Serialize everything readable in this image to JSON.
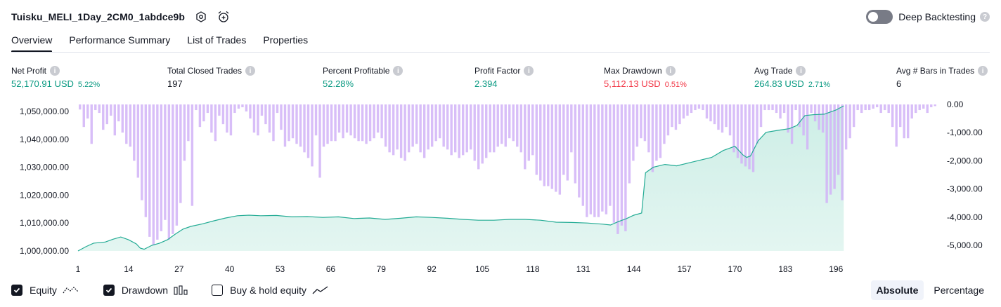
{
  "header": {
    "strategy_title": "Tuisku_MELI_1Day_2CM0_1abdce9b",
    "settings_icon": "gear-icon",
    "alert_icon": "alarm-plus-icon",
    "deep_backtesting_label": "Deep Backtesting",
    "deep_backtesting_on": false,
    "help": "?"
  },
  "tabs": [
    {
      "label": "Overview",
      "active": true
    },
    {
      "label": "Performance Summary",
      "active": false
    },
    {
      "label": "List of Trades",
      "active": false
    },
    {
      "label": "Properties",
      "active": false
    }
  ],
  "metrics": [
    {
      "label": "Net Profit",
      "value": "52,170.91 USD",
      "pct": "5.22%",
      "color": "green"
    },
    {
      "label": "Total Closed Trades",
      "value": "197",
      "pct": "",
      "color": "dark"
    },
    {
      "label": "Percent Profitable",
      "value": "52.28%",
      "pct": "",
      "color": "green"
    },
    {
      "label": "Profit Factor",
      "value": "2.394",
      "pct": "",
      "color": "green"
    },
    {
      "label": "Max Drawdown",
      "value": "5,112.13 USD",
      "pct": "0.51%",
      "color": "red"
    },
    {
      "label": "Avg Trade",
      "value": "264.83 USD",
      "pct": "2.71%",
      "color": "green"
    },
    {
      "label": "Avg # Bars in Trades",
      "value": "6",
      "pct": "",
      "color": "dark"
    }
  ],
  "colors": {
    "equity_line": "#22ab94",
    "equity_fill": "#cdeee6",
    "drawdown_bar": "#d1b3f7",
    "drawdown_bar_dark": "#a8a6e6"
  },
  "chart_data": {
    "type": "bar",
    "x_ticks": [
      "1",
      "14",
      "27",
      "40",
      "53",
      "66",
      "79",
      "92",
      "105",
      "118",
      "131",
      "144",
      "157",
      "170",
      "183",
      "196"
    ],
    "left_axis": {
      "ticks": [
        "1,000,000.00",
        "1,010,000.00",
        "1,020,000.00",
        "1,030,000.00",
        "1,040,000.00",
        "1,050,000.00"
      ],
      "range": [
        1000000,
        1052500
      ]
    },
    "right_axis": {
      "ticks": [
        "0.00",
        "-1,000.00",
        "-2,000.00",
        "-3,000.00",
        "-4,000.00",
        "-5,000.00"
      ],
      "range": [
        -5200,
        0
      ]
    },
    "series": [
      {
        "name": "Equity",
        "type": "area",
        "axis": "left",
        "points": [
          [
            1,
            1000000
          ],
          [
            3,
            1001500
          ],
          [
            5,
            1002800
          ],
          [
            8,
            1003200
          ],
          [
            10,
            1004200
          ],
          [
            12,
            1005000
          ],
          [
            14,
            1004000
          ],
          [
            16,
            1002500
          ],
          [
            17,
            1001000
          ],
          [
            18,
            1000600
          ],
          [
            20,
            1002000
          ],
          [
            22,
            1002800
          ],
          [
            24,
            1004000
          ],
          [
            26,
            1006000
          ],
          [
            28,
            1007800
          ],
          [
            30,
            1008800
          ],
          [
            33,
            1009700
          ],
          [
            36,
            1010800
          ],
          [
            39,
            1011800
          ],
          [
            42,
            1012600
          ],
          [
            45,
            1012800
          ],
          [
            48,
            1012600
          ],
          [
            52,
            1012700
          ],
          [
            56,
            1012200
          ],
          [
            60,
            1012300
          ],
          [
            64,
            1012000
          ],
          [
            68,
            1012200
          ],
          [
            72,
            1011600
          ],
          [
            76,
            1011800
          ],
          [
            80,
            1011300
          ],
          [
            84,
            1011700
          ],
          [
            88,
            1012200
          ],
          [
            92,
            1012000
          ],
          [
            96,
            1011700
          ],
          [
            100,
            1011300
          ],
          [
            104,
            1011000
          ],
          [
            108,
            1011000
          ],
          [
            112,
            1011300
          ],
          [
            116,
            1011300
          ],
          [
            120,
            1011000
          ],
          [
            124,
            1010300
          ],
          [
            128,
            1010200
          ],
          [
            132,
            1010000
          ],
          [
            136,
            1009600
          ],
          [
            138,
            1009300
          ],
          [
            140,
            1010500
          ],
          [
            142,
            1011500
          ],
          [
            144,
            1012800
          ],
          [
            145,
            1013200
          ],
          [
            146,
            1013600
          ],
          [
            147,
            1028000
          ],
          [
            149,
            1030000
          ],
          [
            152,
            1031000
          ],
          [
            155,
            1030500
          ],
          [
            158,
            1031500
          ],
          [
            161,
            1032500
          ],
          [
            164,
            1033500
          ],
          [
            167,
            1036000
          ],
          [
            170,
            1037500
          ],
          [
            172,
            1034500
          ],
          [
            173,
            1033500
          ],
          [
            174,
            1034000
          ],
          [
            176,
            1039500
          ],
          [
            178,
            1042500
          ],
          [
            181,
            1043200
          ],
          [
            184,
            1043800
          ],
          [
            186,
            1045000
          ],
          [
            188,
            1048500
          ],
          [
            190,
            1048800
          ],
          [
            193,
            1049000
          ],
          [
            196,
            1050500
          ],
          [
            198,
            1052000
          ]
        ]
      },
      {
        "name": "Drawdown",
        "type": "bar",
        "axis": "right",
        "values": [
          -180,
          -800,
          -500,
          -1400,
          -200,
          -300,
          -900,
          -700,
          -400,
          -1100,
          -600,
          -1000,
          -1400,
          -1500,
          -2000,
          -2600,
          -3400,
          -4000,
          -4700,
          -5000,
          -4800,
          -4500,
          -4100,
          -4800,
          -4600,
          -4300,
          -3500,
          -2000,
          -1300,
          -3600,
          -200,
          -800,
          -600,
          -300,
          -1000,
          -1300,
          -400,
          -700,
          -1000,
          -1100,
          -300,
          -150,
          -100,
          -250,
          -500,
          -1000,
          -1100,
          -400,
          -700,
          -1000,
          -1300,
          -300,
          -900,
          -1500,
          -1300,
          -1200,
          -1400,
          -1500,
          -1700,
          -1900,
          -2200,
          -1100,
          -2600,
          -1500,
          -1400,
          -1300,
          -1300,
          -1000,
          -1200,
          -1000,
          -1100,
          -1200,
          -1300,
          -1300,
          -1400,
          -1300,
          -1200,
          -1000,
          -1200,
          -1500,
          -1700,
          -1800,
          -1600,
          -1900,
          -2000,
          -1700,
          -1500,
          -1400,
          -1700,
          -1900,
          -1600,
          -1500,
          -1300,
          -1200,
          -1500,
          -1600,
          -1800,
          -1700,
          -1900,
          -1800,
          -1700,
          -1600,
          -2000,
          -2300,
          -2100,
          -1900,
          -1700,
          -1700,
          -1500,
          -1400,
          -1500,
          -1200,
          -1300,
          -1500,
          -1700,
          -2300,
          -2000,
          -1800,
          -2500,
          -2700,
          -2900,
          -2900,
          -3000,
          -3100,
          -3200,
          -2500,
          -2700,
          -1700,
          -2800,
          -3300,
          -3600,
          -4000,
          -3900,
          -4000,
          -4000,
          -3800,
          -3900,
          -3600,
          -4200,
          -4600,
          -4300,
          -4500,
          -2800,
          -2000,
          -1500,
          -1200,
          -1300,
          -1700,
          -2400,
          -2000,
          -1900,
          -1400,
          -1100,
          -800,
          -900,
          -700,
          -500,
          -400,
          -300,
          -200,
          -150,
          -200,
          -500,
          -600,
          -700,
          -900,
          -1000,
          -800,
          -1100,
          -1700,
          -1900,
          -2100,
          -2200,
          -2300,
          -2400,
          -1400,
          -800,
          -200,
          -200,
          -200,
          -300,
          -500,
          -300,
          -1000,
          -1400,
          -200,
          -800,
          -1100,
          -1600,
          -300,
          -600,
          -900,
          -1000,
          -3500,
          -3200,
          -3000,
          -2500,
          -3400,
          -1600,
          -1200,
          -800,
          -200,
          -300,
          -200,
          -200,
          -150,
          -100,
          -300,
          -200,
          -300,
          -800,
          -1500,
          -800,
          -1200,
          -1200,
          -500,
          -300,
          -200,
          -150,
          -300,
          -100,
          -60
        ]
      }
    ]
  },
  "legend": [
    {
      "label": "Equity",
      "checked": true,
      "glyph": "equity-line-icon"
    },
    {
      "label": "Drawdown",
      "checked": true,
      "glyph": "drawdown-bars-icon"
    },
    {
      "label": "Buy & hold equity",
      "checked": false,
      "glyph": "buy-hold-line-icon"
    }
  ],
  "mode": {
    "absolute_label": "Absolute",
    "percentage_label": "Percentage",
    "selected": "Absolute"
  }
}
